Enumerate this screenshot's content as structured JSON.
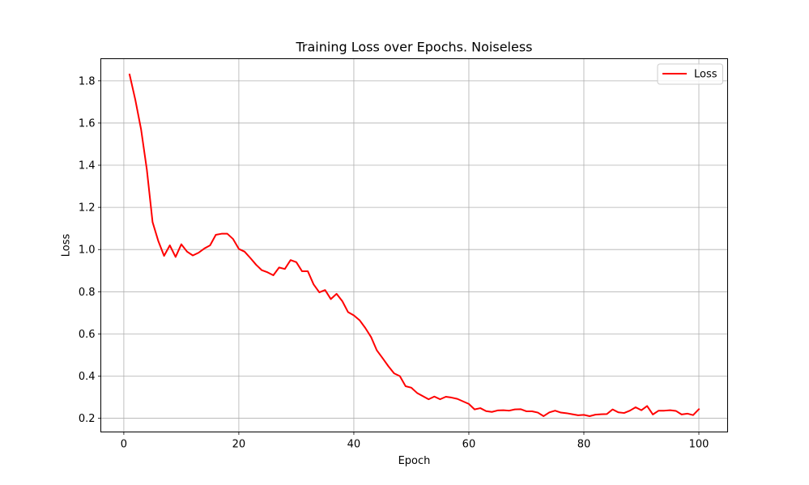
{
  "chart_data": {
    "type": "line",
    "title": "Training Loss over Epochs. Noiseless",
    "xlabel": "Epoch",
    "ylabel": "Loss",
    "xlim": [
      -4,
      105
    ],
    "ylim": [
      0.135,
      1.905
    ],
    "xticks": [
      0,
      20,
      40,
      60,
      80,
      100
    ],
    "yticks": [
      0.2,
      0.4,
      0.6,
      0.8,
      1.0,
      1.2,
      1.4,
      1.6,
      1.8
    ],
    "grid": true,
    "legend_position": "top-right",
    "series": [
      {
        "name": "Loss",
        "color": "#ff0000",
        "x": [
          1,
          2,
          3,
          4,
          5,
          6,
          7,
          8,
          9,
          10,
          11,
          12,
          13,
          14,
          15,
          16,
          17,
          18,
          19,
          20,
          21,
          22,
          23,
          24,
          25,
          26,
          27,
          28,
          29,
          30,
          31,
          32,
          33,
          34,
          35,
          36,
          37,
          38,
          39,
          40,
          41,
          42,
          43,
          44,
          45,
          46,
          47,
          48,
          49,
          50,
          51,
          52,
          53,
          54,
          55,
          56,
          57,
          58,
          59,
          60,
          61,
          62,
          63,
          64,
          65,
          66,
          67,
          68,
          69,
          70,
          71,
          72,
          73,
          74,
          75,
          76,
          77,
          78,
          79,
          80,
          81,
          82,
          83,
          84,
          85,
          86,
          87,
          88,
          89,
          90,
          91,
          92,
          93,
          94,
          95,
          96,
          97,
          98,
          99,
          100
        ],
        "y": [
          1.83,
          1.71,
          1.57,
          1.38,
          1.13,
          1.04,
          0.97,
          1.02,
          0.965,
          1.025,
          0.99,
          0.972,
          0.985,
          1.005,
          1.02,
          1.07,
          1.075,
          1.075,
          1.05,
          1.003,
          0.99,
          0.96,
          0.928,
          0.902,
          0.892,
          0.878,
          0.915,
          0.908,
          0.95,
          0.94,
          0.897,
          0.897,
          0.835,
          0.797,
          0.808,
          0.765,
          0.79,
          0.755,
          0.703,
          0.688,
          0.665,
          0.628,
          0.585,
          0.522,
          0.485,
          0.447,
          0.413,
          0.4,
          0.352,
          0.345,
          0.32,
          0.305,
          0.29,
          0.303,
          0.29,
          0.302,
          0.298,
          0.292,
          0.28,
          0.268,
          0.242,
          0.248,
          0.234,
          0.23,
          0.237,
          0.238,
          0.236,
          0.242,
          0.243,
          0.233,
          0.233,
          0.227,
          0.21,
          0.228,
          0.236,
          0.227,
          0.224,
          0.219,
          0.214,
          0.216,
          0.21,
          0.217,
          0.219,
          0.22,
          0.242,
          0.228,
          0.225,
          0.236,
          0.252,
          0.238,
          0.258,
          0.218,
          0.236,
          0.236,
          0.238,
          0.235,
          0.218,
          0.222,
          0.215,
          0.243
        ]
      }
    ]
  }
}
